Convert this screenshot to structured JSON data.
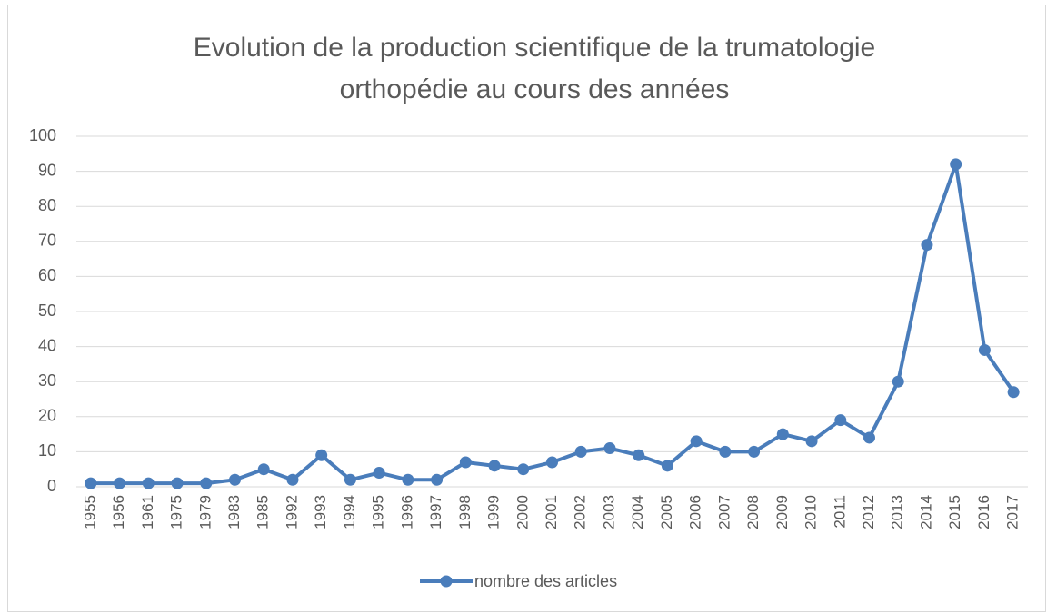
{
  "chart_data": {
    "type": "line",
    "title": "Evolution de la production scientifique de la trumatologie orthopédie au cours des années",
    "categories": [
      "1955",
      "1956",
      "1961",
      "1975",
      "1979",
      "1983",
      "1985",
      "1992",
      "1993",
      "1994",
      "1995",
      "1996",
      "1997",
      "1998",
      "1999",
      "2000",
      "2001",
      "2002",
      "2003",
      "2004",
      "2005",
      "2006",
      "2007",
      "2008",
      "2009",
      "2010",
      "2011",
      "2012",
      "2013",
      "2014",
      "2015",
      "2016",
      "2017"
    ],
    "series": [
      {
        "name": "nombre des articles",
        "color": "#4a7dbb",
        "values": [
          1,
          1,
          1,
          1,
          1,
          2,
          5,
          2,
          9,
          2,
          4,
          2,
          2,
          7,
          6,
          5,
          7,
          10,
          11,
          9,
          6,
          13,
          10,
          10,
          15,
          13,
          19,
          14,
          30,
          69,
          92,
          39,
          27
        ]
      }
    ],
    "ylim": [
      0,
      100
    ],
    "yticks": [
      0,
      10,
      20,
      30,
      40,
      50,
      60,
      70,
      80,
      90,
      100
    ],
    "grid": true,
    "legend": "bottom"
  }
}
